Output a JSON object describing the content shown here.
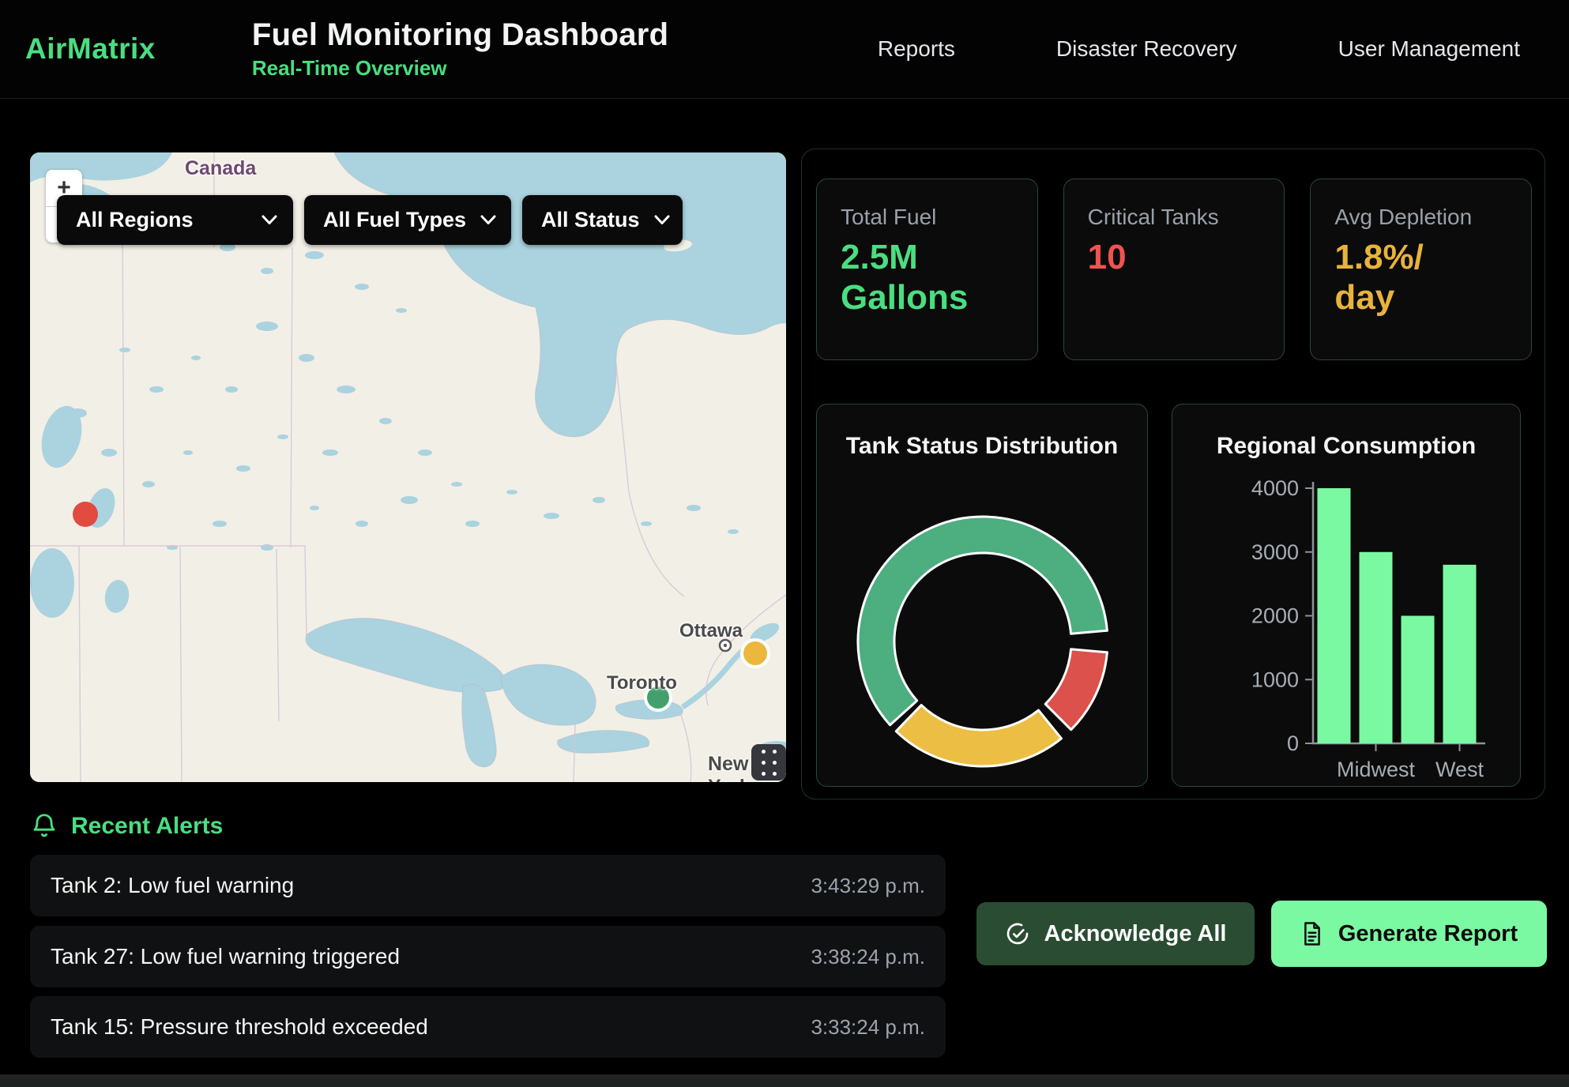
{
  "header": {
    "logo": "AirMatrix",
    "title": "Fuel Monitoring Dashboard",
    "subtitle": "Real-Time Overview",
    "nav": [
      {
        "label": "Reports"
      },
      {
        "label": "Disaster Recovery"
      },
      {
        "label": "User Management"
      }
    ]
  },
  "map": {
    "zoom_in": "+",
    "zoom_out": "−",
    "filters": [
      {
        "label": "All Regions"
      },
      {
        "label": "All Fuel Types"
      },
      {
        "label": "All Status"
      }
    ],
    "place_labels": {
      "country": "Canada",
      "city_ottawa": "Ottawa",
      "city_toronto": "Toronto",
      "city_newyork": "New York"
    },
    "markers": [
      {
        "status": "critical",
        "color": "#e14b40"
      },
      {
        "status": "warning",
        "color": "#ecb73d"
      },
      {
        "status": "normal",
        "color": "#43a06c"
      }
    ]
  },
  "stats": [
    {
      "label": "Total Fuel",
      "value": "2.5M Gallons",
      "color": "#4ade80"
    },
    {
      "label": "Critical Tanks",
      "value": "10",
      "color": "#ef5350"
    },
    {
      "label": "Avg Depletion",
      "value": "1.8%/ day",
      "color": "#e8b33b"
    }
  ],
  "chart_data": [
    {
      "type": "donut",
      "title": "Tank Status Distribution",
      "legend_position": "none",
      "segments": [
        {
          "label": "normal",
          "percent": 60,
          "color": "#4dae80",
          "start_deg": 228,
          "sweep_deg": 217
        },
        {
          "label": "critical",
          "percent": 11,
          "color": "#dc514b",
          "start_deg": 95,
          "sweep_deg": 40
        },
        {
          "label": "warning",
          "percent": 23,
          "color": "#ecbe44",
          "start_deg": 141,
          "sweep_deg": 83
        }
      ],
      "ring_border_color": "#ffffff"
    },
    {
      "type": "bar",
      "title": "Regional Consumption",
      "values": [
        4000,
        3000,
        2000,
        2800
      ],
      "visible_tick_labels": [
        {
          "bar_index": 1,
          "label": "Midwest"
        },
        {
          "bar_index": 3,
          "label": "West"
        }
      ],
      "y_ticks": [
        0,
        1000,
        2000,
        3000,
        4000
      ],
      "ylim": [
        0,
        4000
      ],
      "grid": false,
      "bar_color": "#7bf8a2",
      "axis_color": "#8d939b",
      "tick_label_color": "#a6adb6"
    }
  ],
  "alerts": {
    "title": "Recent Alerts",
    "items": [
      {
        "text": "Tank 2: Low fuel warning",
        "time": "3:43:29 p.m."
      },
      {
        "text": "Tank 27: Low fuel warning triggered",
        "time": "3:38:24 p.m."
      },
      {
        "text": "Tank 15: Pressure threshold exceeded",
        "time": "3:33:24 p.m."
      }
    ]
  },
  "actions": {
    "acknowledge_all": "Acknowledge All",
    "generate_report": "Generate Report"
  }
}
